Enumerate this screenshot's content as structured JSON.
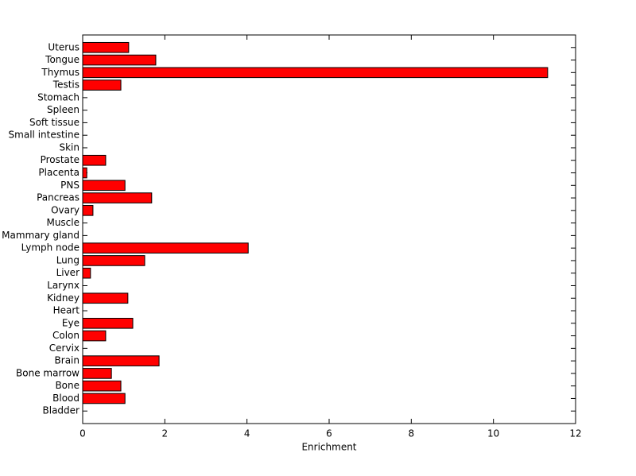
{
  "chart_data": {
    "type": "barh",
    "x_label": "Enrichment",
    "categories": [
      "Bladder",
      "Blood",
      "Bone",
      "Bone marrow",
      "Brain",
      "Cervix",
      "Colon",
      "Eye",
      "Heart",
      "Kidney",
      "Larynx",
      "Liver",
      "Lung",
      "Lymph node",
      "Mammary gland",
      "Muscle",
      "Ovary",
      "Pancreas",
      "PNS",
      "Placenta",
      "Prostate",
      "Skin",
      "Small intestine",
      "Soft tissue",
      "Spleen",
      "Stomach",
      "Testis",
      "Thymus",
      "Tongue",
      "Uterus"
    ],
    "values": [
      0,
      1.03,
      0.93,
      0.7,
      1.86,
      0,
      0.56,
      1.22,
      0,
      1.1,
      0,
      0.19,
      1.51,
      4.03,
      0,
      0,
      0.25,
      1.68,
      1.03,
      0.1,
      0.56,
      0,
      0,
      0,
      0,
      0,
      0.93,
      11.32,
      1.78,
      1.12
    ],
    "color": "#ff0000",
    "xlim": [
      0,
      12
    ],
    "xticks": [
      0,
      2,
      4,
      6,
      8,
      10,
      12
    ]
  }
}
